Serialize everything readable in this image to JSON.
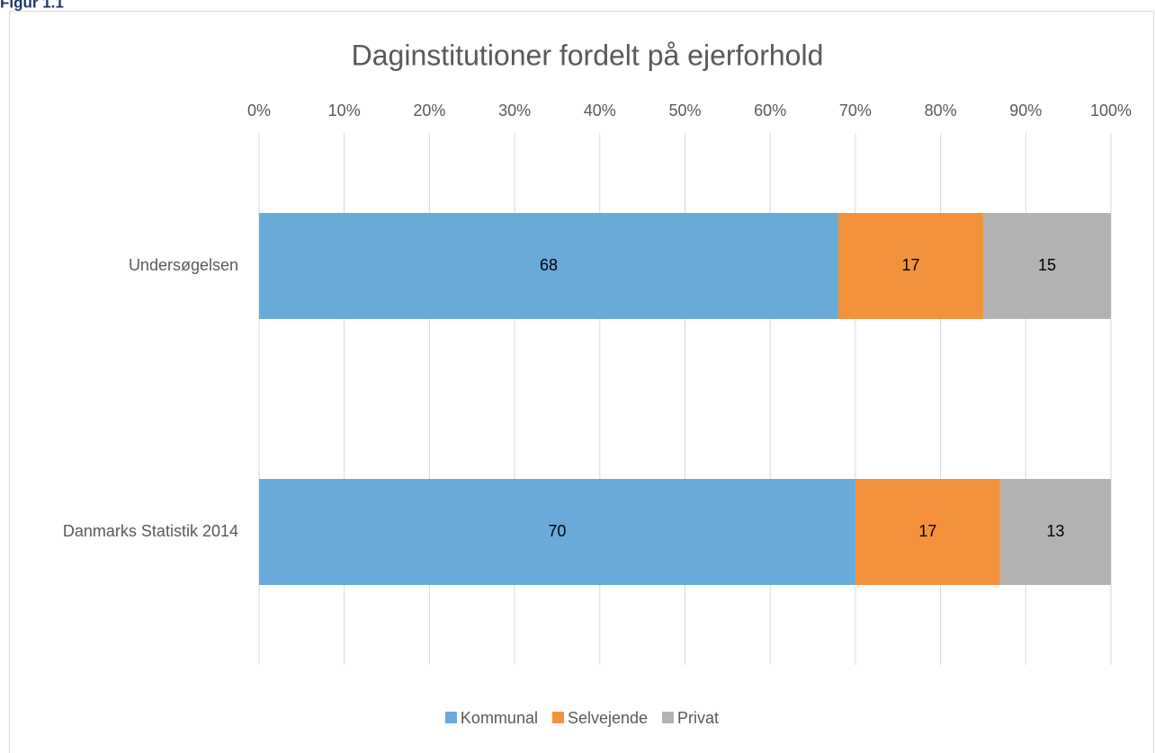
{
  "figure_label": "Figur 1.1",
  "chart_data": {
    "type": "stacked_barh",
    "title": "Daginstitutioner fordelt på ejerforhold",
    "categories": [
      "Undersøgelsen",
      "Danmarks Statistik 2014"
    ],
    "series": [
      {
        "name": "Kommunal",
        "color": "#6aaadb",
        "values": [
          68,
          70
        ]
      },
      {
        "name": "Selvejende",
        "color": "#f4923c",
        "values": [
          17,
          17
        ]
      },
      {
        "name": "Privat",
        "color": "#b2b2b2",
        "values": [
          15,
          13
        ]
      }
    ],
    "xlim": [
      0,
      100
    ],
    "xticks": [
      {
        "value": 0,
        "label": "0%"
      },
      {
        "value": 10,
        "label": "10%"
      },
      {
        "value": 20,
        "label": "20%"
      },
      {
        "value": 30,
        "label": "30%"
      },
      {
        "value": 40,
        "label": "40%"
      },
      {
        "value": 50,
        "label": "50%"
      },
      {
        "value": 60,
        "label": "60%"
      },
      {
        "value": 70,
        "label": "70%"
      },
      {
        "value": 80,
        "label": "80%"
      },
      {
        "value": 90,
        "label": "90%"
      },
      {
        "value": 100,
        "label": "100%"
      }
    ],
    "grid": true,
    "legend": "bottom"
  }
}
